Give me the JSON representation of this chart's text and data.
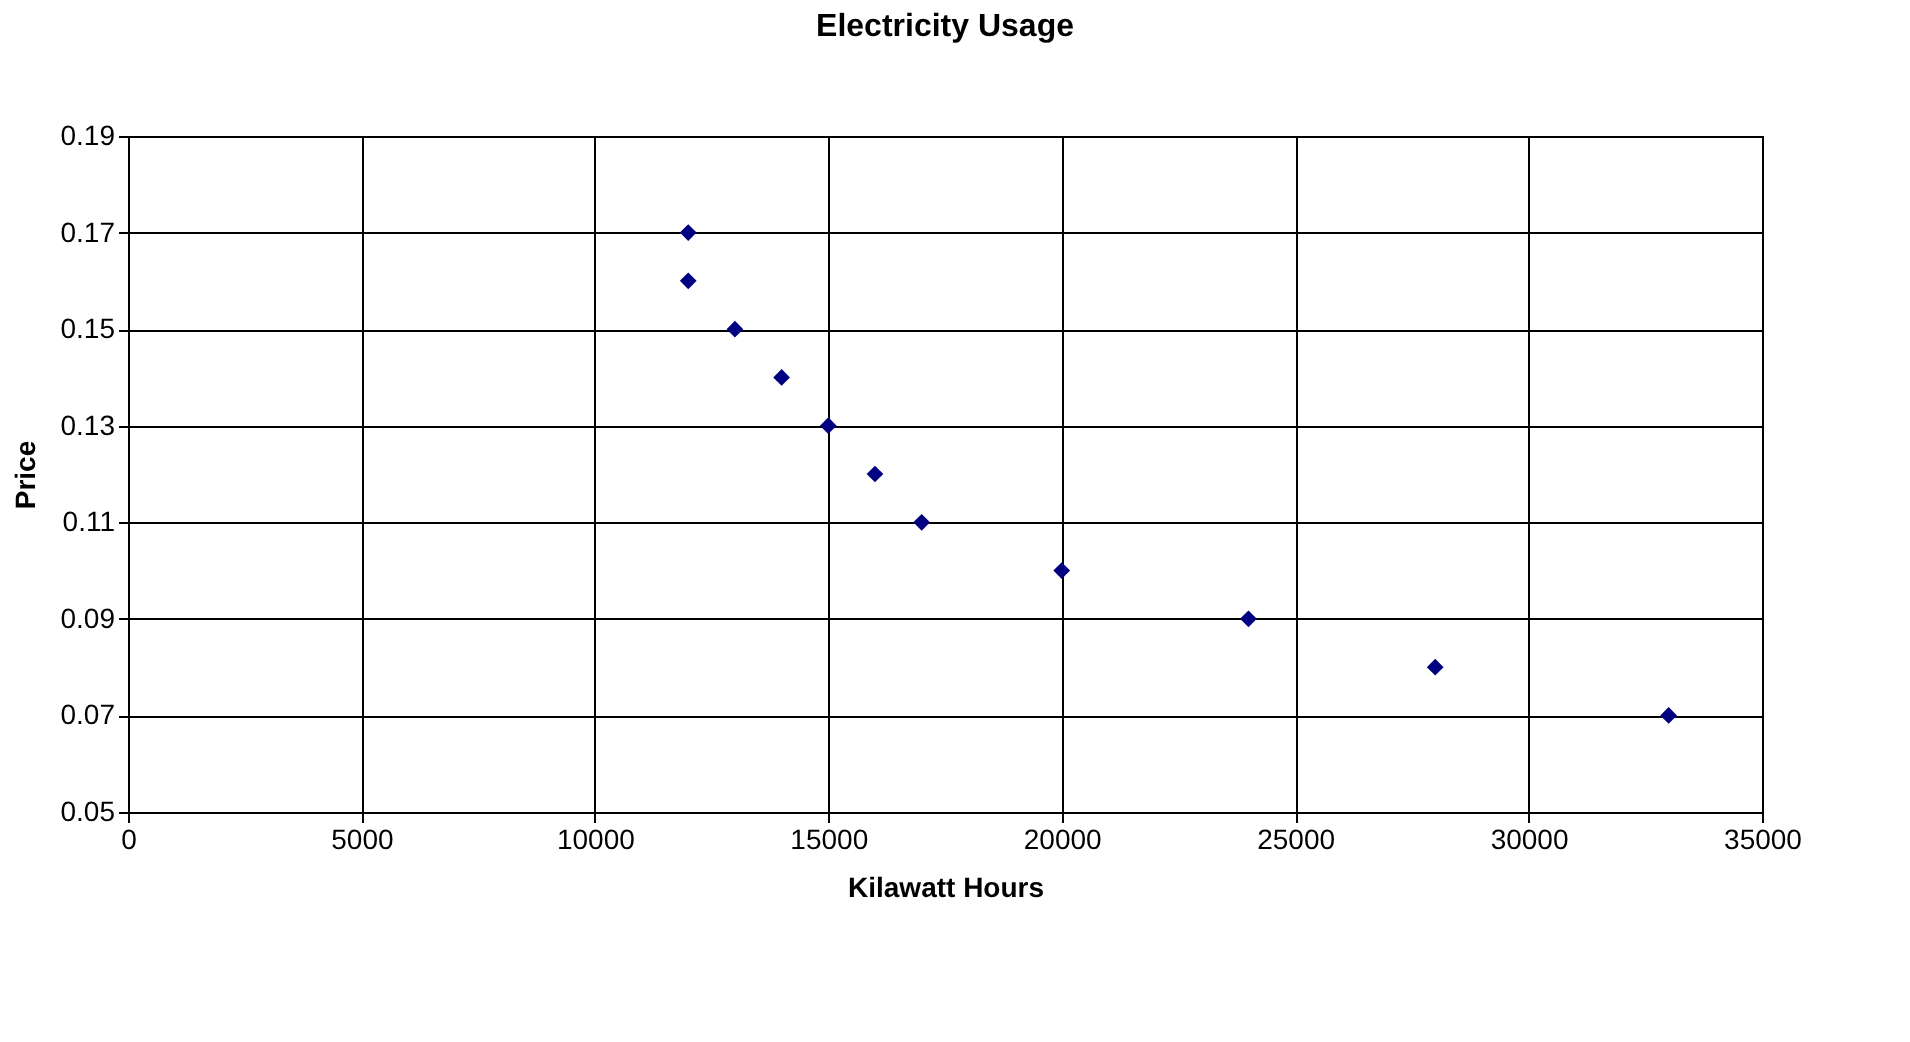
{
  "chart_data": {
    "type": "scatter",
    "title": "Electricity Usage",
    "xlabel": "Kilawatt Hours",
    "ylabel": "Price",
    "x": [
      12000,
      12000,
      13000,
      14000,
      15000,
      16000,
      17000,
      20000,
      24000,
      28000,
      33000
    ],
    "series": [
      {
        "color": "#000080",
        "values": [
          0.17,
          0.16,
          0.15,
          0.14,
          0.13,
          0.12,
          0.11,
          0.1,
          0.09,
          0.08,
          0.07
        ]
      }
    ],
    "xlim": [
      0,
      35000
    ],
    "xticks": [
      0,
      5000,
      10000,
      15000,
      20000,
      25000,
      30000,
      35000
    ],
    "ylim": [
      0.05,
      0.19
    ],
    "yticks": [
      0.05,
      0.07,
      0.09,
      0.11,
      0.13,
      0.15,
      0.17,
      0.19
    ],
    "grid": true,
    "marker": "diamond"
  }
}
